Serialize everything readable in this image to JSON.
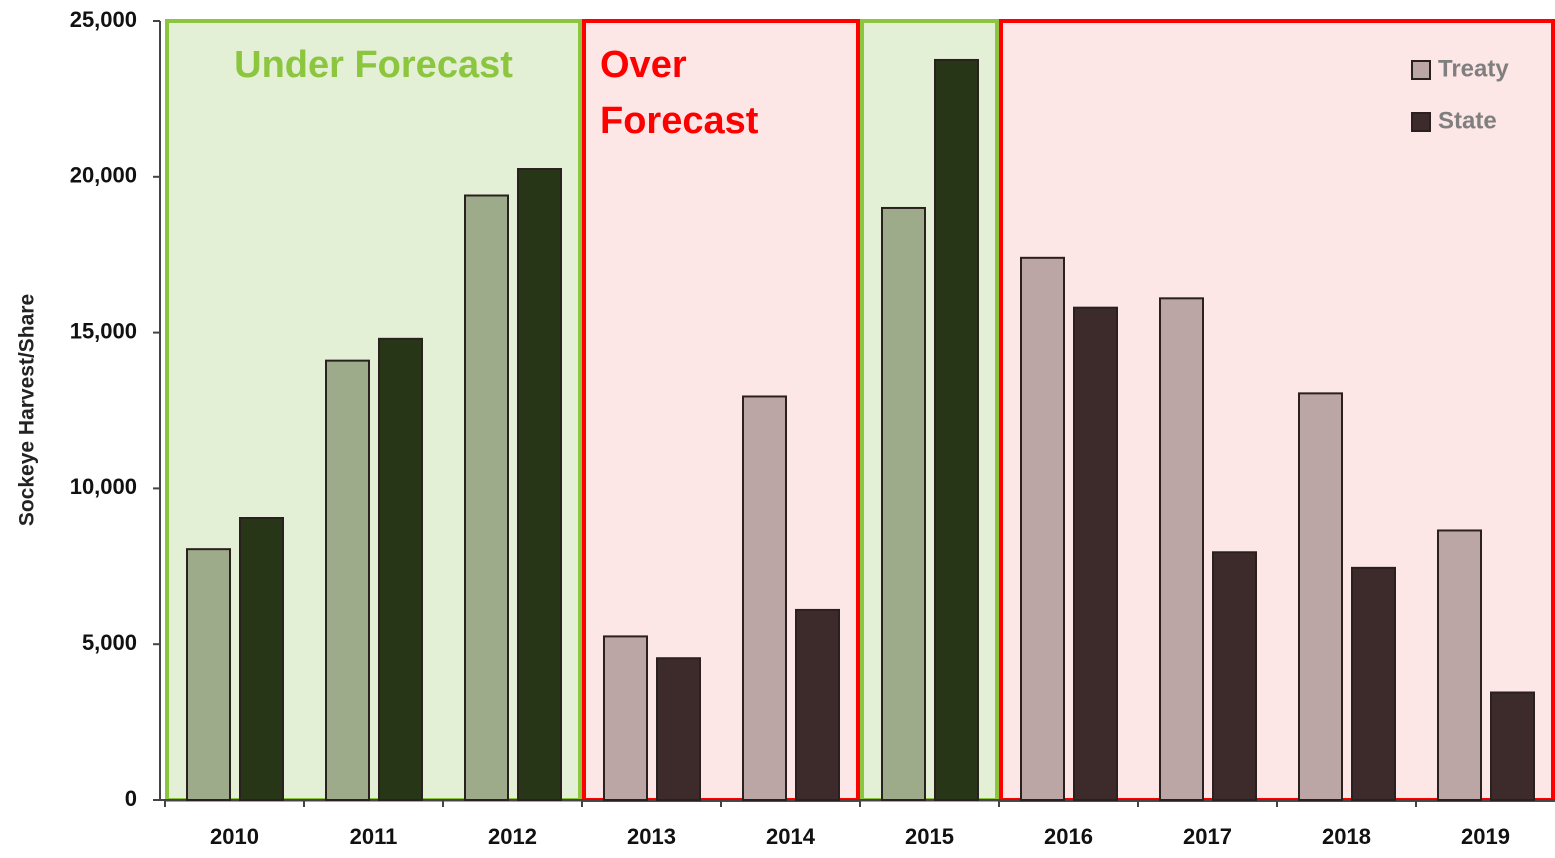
{
  "chart_data": {
    "type": "bar",
    "y_label": "Sockeye Harvest/Share",
    "categories": [
      "2010",
      "2011",
      "2012",
      "2013",
      "2014",
      "2015",
      "2016",
      "2017",
      "2018",
      "2019"
    ],
    "series": [
      {
        "name": "Treaty",
        "color": "#bca6a5",
        "values": [
          8050,
          14100,
          19400,
          5250,
          12950,
          19000,
          17400,
          16100,
          13050,
          8650
        ]
      },
      {
        "name": "State",
        "color": "#3d2b2b",
        "values": [
          9050,
          14800,
          20250,
          4550,
          6100,
          23750,
          15800,
          7950,
          7450,
          3450
        ]
      }
    ],
    "regions": [
      {
        "label": "Under Forecast",
        "categories": [
          "2010",
          "2011",
          "2012"
        ],
        "fill": "#e3f0d6",
        "stroke": "#8cc63f",
        "text_color": "#8cc63f",
        "bar_colors": [
          "#9dab8a",
          "#283618"
        ]
      },
      {
        "label": "Over Forecast",
        "categories": [
          "2013",
          "2014"
        ],
        "fill": "#fde6e6",
        "stroke": "#ff0000",
        "text_color": "#ff0000",
        "bar_colors": [
          "#bca6a5",
          "#3d2b2b"
        ]
      },
      {
        "categories": [
          "2015"
        ],
        "fill": "#e3f0d6",
        "stroke": "#8cc63f",
        "bar_colors": [
          "#9dab8a",
          "#283618"
        ]
      },
      {
        "categories": [
          "2016",
          "2017",
          "2018",
          "2019"
        ],
        "fill": "#fde6e6",
        "stroke": "#ff0000",
        "bar_colors": [
          "#bca6a5",
          "#3d2b2b"
        ]
      }
    ],
    "ylim": [
      0,
      25000
    ],
    "yticks": [
      0,
      {
        "value": 5000,
        "label": "5,000"
      },
      {
        "value": 10000,
        "label": "10,000"
      },
      {
        "value": 15000,
        "label": "15,000"
      },
      {
        "value": 20000,
        "label": "20,000"
      },
      {
        "value": 25000,
        "label": "25,000"
      }
    ],
    "legend": "top-right"
  }
}
